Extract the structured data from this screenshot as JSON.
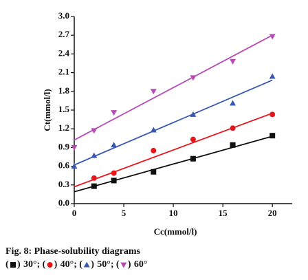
{
  "chart_data": {
    "type": "scatter",
    "caption": "Fig. 8: Phase-solubility diagrams",
    "x_label": "Cc(mmol/l)",
    "y_label": "Ct(mmol/l)",
    "xlim": [
      0,
      22
    ],
    "xticks": [
      0,
      5,
      10,
      15,
      20
    ],
    "ylim": [
      0,
      3
    ],
    "yticks": [
      {
        "value": 0,
        "label": "0.0"
      },
      0.3,
      0.6,
      0.9,
      1.2,
      1.5,
      1.8,
      2.1,
      2.4,
      2.7,
      {
        "value": 3,
        "label": "3.0"
      }
    ],
    "series": [
      {
        "name": "30°",
        "color": "#111111",
        "marker": "square",
        "x": [
          2,
          4,
          8,
          12,
          16,
          20
        ],
        "values": [
          0.28,
          0.37,
          0.51,
          0.72,
          0.94,
          1.09
        ],
        "fit_x": [
          0,
          20
        ],
        "fit": [
          0.19,
          1.08
        ]
      },
      {
        "name": "40°",
        "color": "#e8141b",
        "marker": "circle",
        "x": [
          2,
          4,
          8,
          12,
          16,
          20
        ],
        "values": [
          0.41,
          0.49,
          0.85,
          1.03,
          1.21,
          1.43
        ],
        "fit_x": [
          0,
          20
        ],
        "fit": [
          0.27,
          1.45
        ]
      },
      {
        "name": "50°",
        "color": "#3a58b0",
        "marker": "triangle-up",
        "x": [
          0,
          2,
          4,
          8,
          12,
          16,
          20
        ],
        "values": [
          0.6,
          0.77,
          0.94,
          1.18,
          1.43,
          1.61,
          2.04
        ],
        "fit_x": [
          0,
          20
        ],
        "fit": [
          0.62,
          1.98
        ]
      },
      {
        "name": "60°",
        "color": "#b54bb5",
        "marker": "triangle-down",
        "x": [
          0,
          2,
          4,
          8,
          12,
          16,
          20
        ],
        "values": [
          0.9,
          1.17,
          1.46,
          1.8,
          2.02,
          2.28,
          2.68
        ],
        "fit_x": [
          0,
          20
        ],
        "fit": [
          1.02,
          2.7
        ]
      }
    ]
  }
}
